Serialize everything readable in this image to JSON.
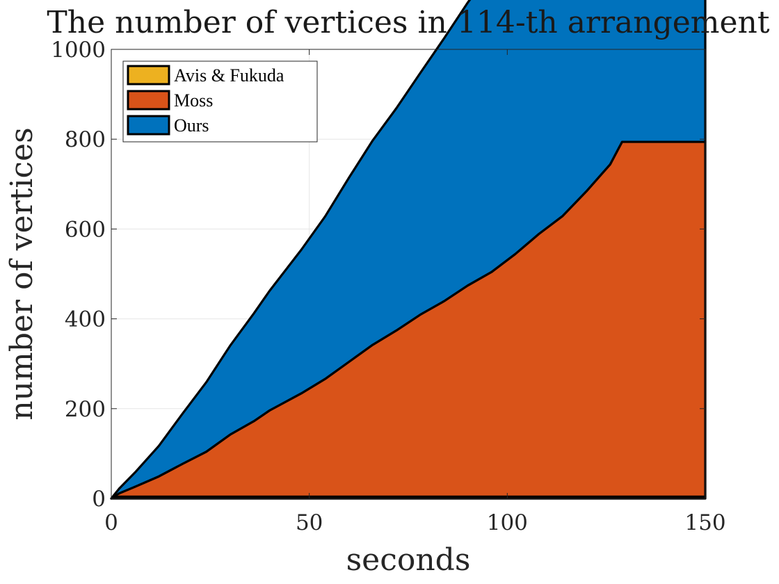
{
  "chart_data": {
    "type": "area",
    "stacked": true,
    "title": "The number of vertices in 114-th arrangement",
    "xlabel": "seconds",
    "ylabel": "number of vertices",
    "xlim": [
      0,
      150
    ],
    "ylim": [
      0,
      1000
    ],
    "xticks": [
      0,
      50,
      100,
      150
    ],
    "yticks": [
      0,
      200,
      400,
      600,
      800,
      1000
    ],
    "grid": true,
    "legend_position": "top-left",
    "colors": {
      "Avis & Fukuda": "#EDB120",
      "Moss": "#D95319",
      "Ours": "#0072BD",
      "outline": "#000000",
      "grid": "#e6e6e6"
    },
    "series": [
      {
        "name": "Avis & Fukuda",
        "x": [
          0,
          2,
          150
        ],
        "values": [
          0,
          4,
          4
        ]
      },
      {
        "name": "Moss",
        "x": [
          0,
          6,
          12,
          18,
          24,
          30,
          36,
          40,
          48,
          54,
          60,
          66,
          72,
          78,
          84,
          90,
          96,
          102,
          108,
          114,
          120,
          126,
          129,
          150
        ],
        "values": [
          0,
          22,
          45,
          73,
          100,
          138,
          168,
          192,
          230,
          262,
          300,
          338,
          370,
          405,
          435,
          470,
          500,
          540,
          585,
          625,
          680,
          740,
          790,
          790
        ]
      },
      {
        "name": "Ours",
        "x": [
          0,
          6,
          12,
          18,
          24,
          30,
          36,
          42,
          48,
          54,
          60,
          66,
          72,
          78,
          84,
          90,
          96,
          102,
          108,
          111,
          150
        ],
        "values": [
          0,
          32,
          68,
          112,
          155,
          198,
          240,
          280,
          320,
          362,
          410,
          455,
          495,
          538,
          585,
          630,
          670,
          725,
          785,
          790,
          790
        ]
      }
    ]
  }
}
